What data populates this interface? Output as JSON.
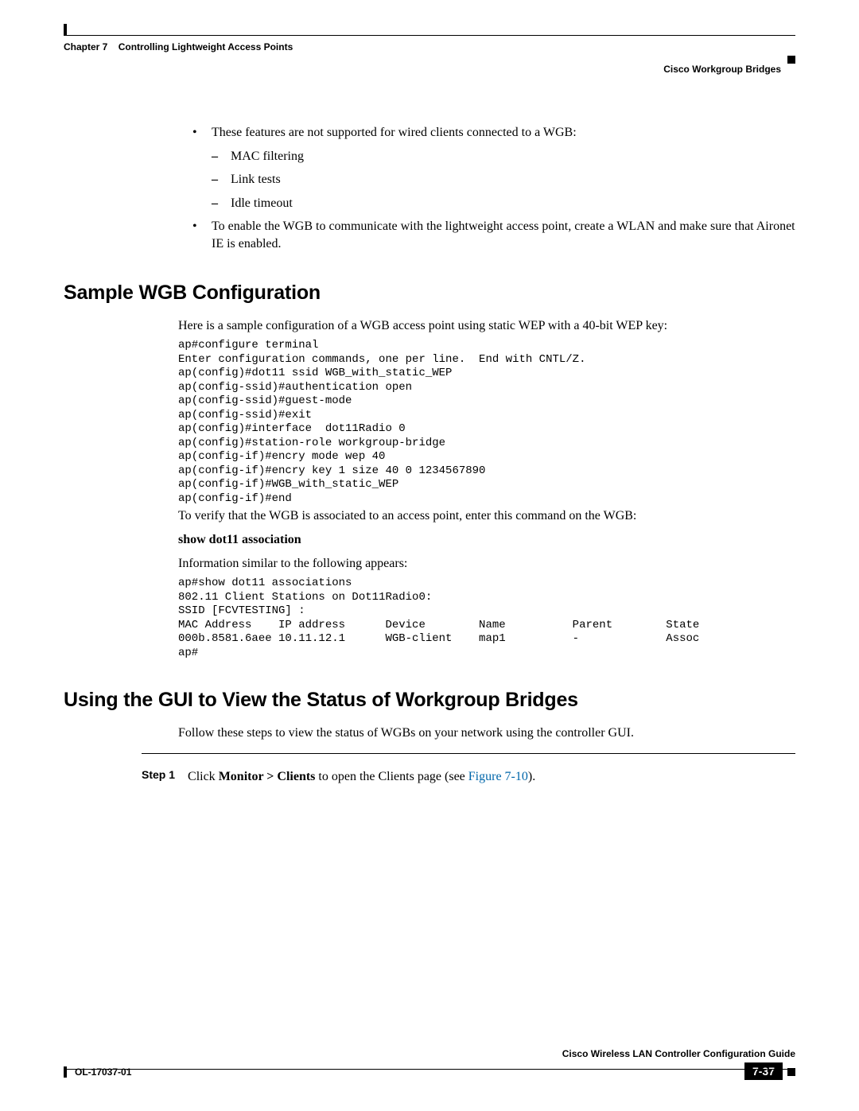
{
  "header": {
    "chapter_label": "Chapter 7",
    "chapter_title": "Controlling Lightweight Access Points",
    "section_title": "Cisco Workgroup Bridges"
  },
  "bullets": {
    "item1_intro": "These features are not supported for wired clients connected to a WGB:",
    "sub1": "MAC filtering",
    "sub2": "Link tests",
    "sub3": "Idle timeout",
    "item2": "To enable the WGB to communicate with the lightweight access point, create a WLAN and make sure that Aironet IE is enabled."
  },
  "section1": {
    "heading": "Sample WGB Configuration",
    "intro": "Here is a sample configuration of a WGB access point using static WEP with a 40-bit WEP key:",
    "code": "ap#configure terminal\nEnter configuration commands, one per line.  End with CNTL/Z.\nap(config)#dot11 ssid WGB_with_static_WEP\nap(config-ssid)#authentication open\nap(config-ssid)#guest-mode\nap(config-ssid)#exit\nap(config)#interface  dot11Radio 0\nap(config)#station-role workgroup-bridge\nap(config-if)#encry mode wep 40\nap(config-if)#encry key 1 size 40 0 1234567890\nap(config-if)#WGB_with_static_WEP\nap(config-if)#end",
    "verify_text": "To verify that the WGB is associated to an access point, enter this command on the WGB:",
    "command": "show dot11 association",
    "info_text": "Information similar to the following appears:",
    "output": "ap#show dot11 associations\n802.11 Client Stations on Dot11Radio0:\nSSID [FCVTESTING] :\nMAC Address    IP address      Device        Name          Parent        State\n000b.8581.6aee 10.11.12.1      WGB-client    map1          -             Assoc\nap#"
  },
  "section2": {
    "heading": "Using the GUI to View the Status of Workgroup Bridges",
    "intro": "Follow these steps to view the status of WGBs on your network using the controller GUI.",
    "step_label": "Step 1",
    "step_pre": "Click ",
    "step_bold": "Monitor > Clients",
    "step_mid": " to open the Clients page (see ",
    "step_ref": "Figure 7-10",
    "step_post": ")."
  },
  "footer": {
    "guide": "Cisco Wireless LAN Controller Configuration Guide",
    "doc_id": "OL-17037-01",
    "page": "7-37"
  },
  "colors": {
    "text": "#000000",
    "link": "#0066aa",
    "background": "#ffffff"
  }
}
